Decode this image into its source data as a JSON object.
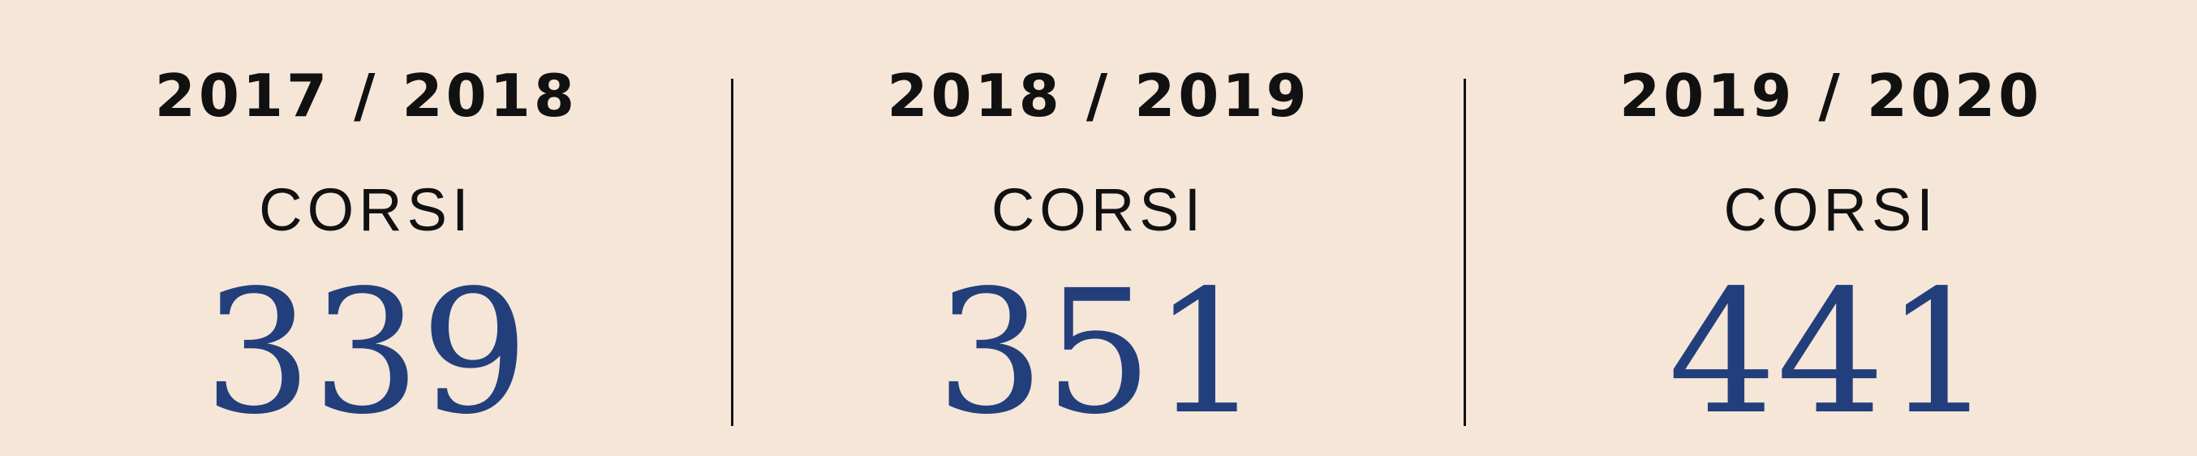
{
  "colors": {
    "background": "#f5e6d8",
    "text": "#111111",
    "accent": "#223f7c",
    "divider": "#111111"
  },
  "stats": [
    {
      "year": "2017 / 2018",
      "label": "CORSI",
      "value": "339"
    },
    {
      "year": "2018 / 2019",
      "label": "CORSI",
      "value": "351"
    },
    {
      "year": "2019 / 2020",
      "label": "CORSI",
      "value": "441"
    }
  ]
}
